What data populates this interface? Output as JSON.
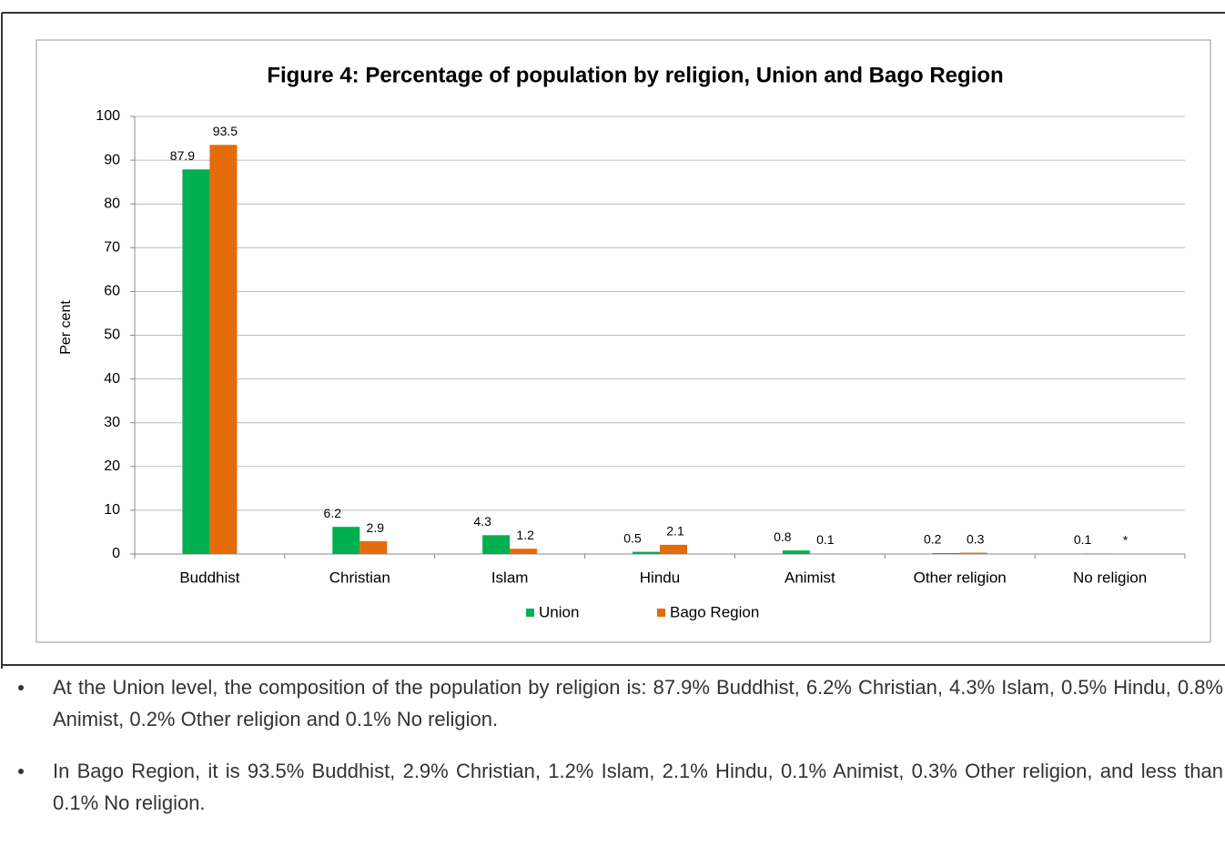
{
  "chart_data": {
    "type": "bar",
    "title": "Figure 4: Percentage of population by religion, Union and Bago Region",
    "ylabel": "Per cent",
    "categories": [
      "Buddhist",
      "Christian",
      "Islam",
      "Hindu",
      "Animist",
      "Other religion",
      "No religion"
    ],
    "series": [
      {
        "name": "Union",
        "color": "#00b050",
        "values": [
          87.9,
          6.2,
          4.3,
          0.5,
          0.8,
          0.2,
          0.1
        ]
      },
      {
        "name": "Bago Region",
        "color": "#e46c0a",
        "values": [
          93.5,
          2.9,
          1.2,
          2.1,
          0.1,
          0.3,
          null
        ],
        "value_labels": [
          "93.5",
          "2.9",
          "1.2",
          "2.1",
          "0.1",
          "0.3",
          "*"
        ]
      }
    ],
    "ylim": [
      0,
      100
    ],
    "yticks": [
      0,
      10,
      20,
      30,
      40,
      50,
      60,
      70,
      80,
      90,
      100
    ],
    "grid": true,
    "legend": "bottom"
  },
  "text": {
    "paragraphs": [
      "At the Union level, the composition of the population by religion is: 87.9% Buddhist, 6.2% Christian, 4.3% Islam, 0.5% Hindu, 0.8% Animist, 0.2% Other religion and 0.1% No religion.",
      "In Bago Region, it is 93.5% Buddhist, 2.9% Christian, 1.2% Islam, 2.1% Hindu, 0.1% Animist, 0.3% Other religion, and less than 0.1% No religion."
    ]
  }
}
